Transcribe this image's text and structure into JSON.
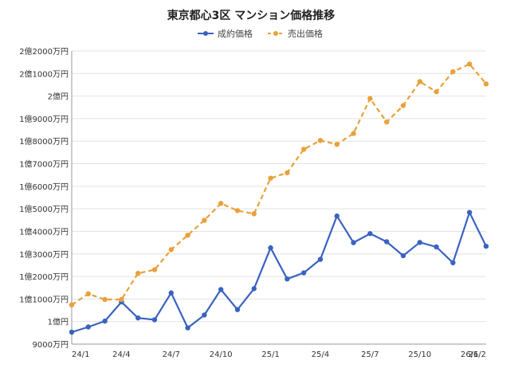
{
  "chart_data": {
    "type": "line",
    "title": "東京都心3区 マンション価格推移",
    "xlabel": "",
    "ylabel": "",
    "x_tick_labels": [
      "24/1",
      "24/4",
      "24/7",
      "24/10",
      "25/1",
      "25/4",
      "25/7",
      "25/10",
      "26/1",
      "26/2"
    ],
    "y_tick_labels": [
      "9000万円",
      "1億円",
      "1億1000万円",
      "1億2000万円",
      "1億3000万円",
      "1億4000万円",
      "1億5000万円",
      "1億6000万円",
      "1億7000万円",
      "1億8000万円",
      "1億9000万円",
      "2億円",
      "2億1000万円",
      "2億2000万円"
    ],
    "y_ticks": [
      9000,
      10000,
      11000,
      12000,
      13000,
      14000,
      15000,
      16000,
      17000,
      18000,
      19000,
      20000,
      21000,
      22000
    ],
    "ylim": [
      9000,
      22000
    ],
    "x_unit": "month",
    "months": [
      "24/1",
      "24/2",
      "24/3",
      "24/4",
      "24/5",
      "24/6",
      "24/7",
      "24/8",
      "24/9",
      "24/10",
      "24/11",
      "24/12",
      "25/1",
      "25/2",
      "25/3",
      "25/4",
      "25/5",
      "25/6",
      "25/7",
      "25/8",
      "25/9",
      "25/10",
      "25/11",
      "25/12",
      "26/1",
      "26/2"
    ],
    "legend_position": "top-center",
    "series": [
      {
        "name": "成約価格",
        "color": "#3a62c0",
        "dash": "solid",
        "values": [
          9530,
          9760,
          10020,
          10870,
          10160,
          10080,
          11270,
          9720,
          10290,
          11420,
          10530,
          11460,
          13270,
          11890,
          12160,
          12760,
          14680,
          13500,
          13900,
          13540,
          12920,
          13510,
          13310,
          12610,
          14840,
          13340
        ]
      },
      {
        "name": "売出価格",
        "color": "#e8a13a",
        "dash": "dashed",
        "values": [
          10740,
          11230,
          10980,
          10980,
          12140,
          12300,
          13190,
          13830,
          14490,
          15240,
          14920,
          14780,
          16360,
          16600,
          17640,
          18030,
          17860,
          18340,
          19890,
          18850,
          19580,
          20640,
          20190,
          21080,
          21420,
          20540
        ]
      }
    ]
  }
}
